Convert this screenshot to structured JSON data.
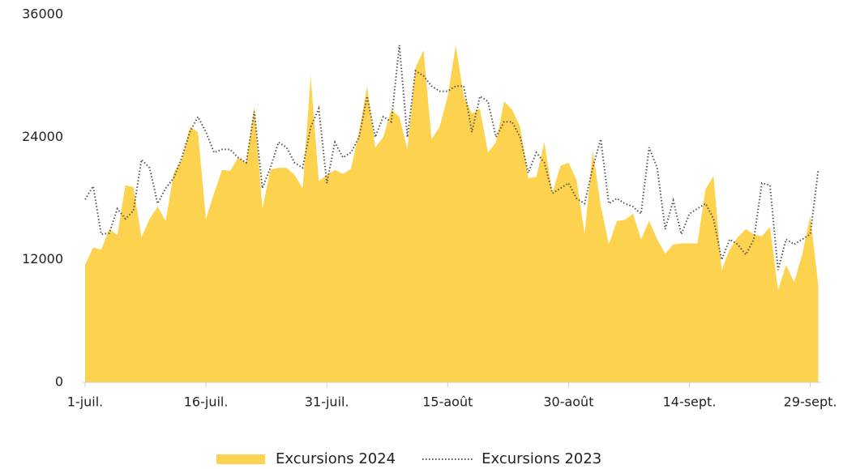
{
  "chart_data": {
    "type": "area",
    "categories": [
      "1-juil.",
      null,
      null,
      null,
      null,
      null,
      null,
      null,
      null,
      null,
      null,
      null,
      null,
      null,
      null,
      "16-juil.",
      null,
      null,
      null,
      null,
      null,
      null,
      null,
      null,
      null,
      null,
      null,
      null,
      null,
      null,
      "31-juil.",
      null,
      null,
      null,
      null,
      null,
      null,
      null,
      null,
      null,
      null,
      null,
      null,
      null,
      null,
      "15-août",
      null,
      null,
      null,
      null,
      null,
      null,
      null,
      null,
      null,
      null,
      null,
      null,
      null,
      null,
      "30-août",
      null,
      null,
      null,
      null,
      null,
      null,
      null,
      null,
      null,
      null,
      null,
      null,
      null,
      null,
      "14-sept.",
      null,
      null,
      null,
      null,
      null,
      null,
      null,
      null,
      null,
      null,
      null,
      null,
      null,
      null,
      "29-sept.",
      null
    ],
    "series": [
      {
        "name": "Excursions 2024",
        "type": "area",
        "color": "#fdd24f",
        "values": [
          11500,
          13200,
          13000,
          15000,
          14400,
          19300,
          19100,
          14200,
          16000,
          17200,
          15800,
          20500,
          21800,
          25000,
          24500,
          16000,
          18500,
          20800,
          20700,
          22000,
          21500,
          27000,
          17000,
          20800,
          21000,
          21000,
          20300,
          19000,
          30000,
          19700,
          20300,
          20800,
          20400,
          20900,
          24500,
          29000,
          23000,
          24000,
          26700,
          26000,
          22800,
          30800,
          32500,
          23800,
          25000,
          28000,
          33000,
          28000,
          26300,
          26800,
          22500,
          23500,
          27500,
          26700,
          25000,
          20000,
          20100,
          23500,
          18500,
          21200,
          21500,
          19800,
          14500,
          22700,
          17300,
          13500,
          15800,
          15900,
          16500,
          14000,
          15800,
          14000,
          12600,
          13500,
          13600,
          13600,
          13600,
          18900,
          20200,
          11000,
          13000,
          14200,
          15000,
          14500,
          14300,
          15200,
          9000,
          11500,
          9800,
          12500,
          16300,
          9500
        ]
      },
      {
        "name": "Excursions 2023",
        "type": "line",
        "dashed": true,
        "color": "#555555",
        "values": [
          17900,
          19200,
          14500,
          14600,
          17000,
          16000,
          16800,
          21800,
          21000,
          17500,
          19000,
          20000,
          22000,
          24500,
          26000,
          24500,
          22500,
          22800,
          22800,
          22000,
          21500,
          26500,
          19000,
          21000,
          23500,
          23000,
          21500,
          21000,
          25000,
          26800,
          19500,
          23500,
          22000,
          22500,
          24000,
          28000,
          24000,
          26000,
          25500,
          33000,
          24000,
          30500,
          30000,
          29000,
          28500,
          28500,
          29000,
          29000,
          24500,
          28000,
          27500,
          24000,
          25500,
          25500,
          24000,
          20500,
          22500,
          21500,
          18500,
          19000,
          19500,
          18000,
          17500,
          21000,
          23800,
          17500,
          18000,
          17500,
          17200,
          16500,
          23000,
          21000,
          15000,
          17800,
          14500,
          16500,
          17000,
          17500,
          16000,
          12000,
          14000,
          13500,
          12500,
          14000,
          19500,
          19300,
          11000,
          14000,
          13500,
          14000,
          14500,
          20800
        ]
      }
    ],
    "ylim": [
      0,
      36000
    ],
    "yticks": [
      0,
      12000,
      24000,
      36000
    ],
    "grid": false,
    "legend": "bottom"
  }
}
